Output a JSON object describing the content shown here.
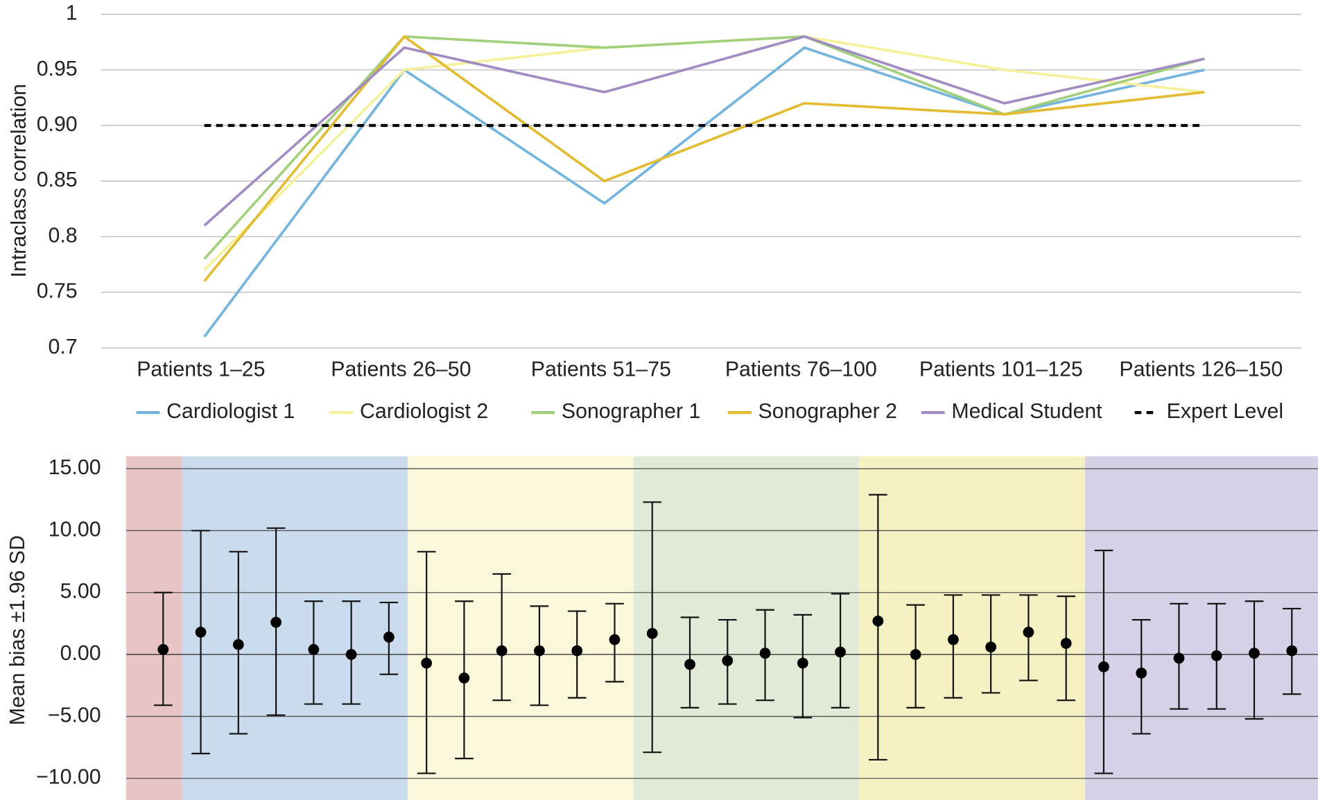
{
  "chart_data": [
    {
      "type": "line",
      "ylabel": "Intraclass correlation",
      "categories": [
        "Patients 1–25",
        "Patients 26–50",
        "Patients 51–75",
        "Patients 76–100",
        "Patients 101–125",
        "Patients 126–150"
      ],
      "ylim": [
        0.7,
        1
      ],
      "yticks": [
        0.7,
        0.75,
        0.8,
        0.85,
        {
          "value": 0.9,
          "label": "0.90"
        },
        0.95,
        1
      ],
      "grid": true,
      "series": [
        {
          "name": "Cardiologist 1",
          "color": "#72b4dd",
          "values": [
            0.71,
            0.95,
            0.83,
            0.97,
            0.91,
            0.95
          ]
        },
        {
          "name": "Cardiologist 2",
          "color": "#f6f09a",
          "values": [
            0.77,
            0.95,
            0.97,
            0.98,
            0.95,
            0.93
          ]
        },
        {
          "name": "Sonographer 1",
          "color": "#a2d07a",
          "values": [
            0.78,
            0.98,
            0.97,
            0.98,
            0.91,
            0.96
          ]
        },
        {
          "name": "Sonographer 2",
          "color": "#e2bb30",
          "values": [
            0.76,
            0.98,
            0.85,
            0.92,
            0.91,
            0.93
          ]
        },
        {
          "name": "Medical Student",
          "color": "#a08cc2",
          "values": [
            0.81,
            0.97,
            0.93,
            0.98,
            0.92,
            0.96
          ]
        },
        {
          "name": "Expert Level",
          "color": "#000000",
          "dashed": true,
          "values": [
            0.9,
            0.9,
            0.9,
            0.9,
            0.9,
            0.9
          ]
        }
      ]
    },
    {
      "type": "errorbar",
      "ylabel": "Mean  bias ±1.96 SD",
      "ylim": [
        -11.75,
        16
      ],
      "yticks": [
        {
          "value": -10,
          "label": "−10.00"
        },
        {
          "value": -5,
          "label": "−5.00"
        },
        {
          "value": 0,
          "label": "0.00"
        },
        {
          "value": 5,
          "label": "5.00"
        },
        {
          "value": 10,
          "label": "10.00"
        },
        {
          "value": 15,
          "label": "15.00"
        }
      ],
      "grid": true,
      "marker_color": "#000000",
      "series": [
        {
          "color": "#e8c4c4",
          "values": [
            0.4
          ],
          "upper": [
            5.0
          ],
          "lower": [
            -4.1
          ]
        },
        {
          "color": "#cbdbee",
          "values": [
            1.8,
            0.8,
            2.6,
            0.4,
            0.0,
            1.4
          ],
          "upper": [
            10.0,
            8.3,
            10.2,
            4.3,
            4.3,
            4.2
          ],
          "lower": [
            -8.0,
            -6.4,
            -4.9,
            -4.0,
            -4.0,
            -1.6
          ]
        },
        {
          "color": "#faf7da",
          "values": [
            -0.7,
            -1.9,
            0.3,
            0.3,
            0.3,
            1.2
          ],
          "upper": [
            8.3,
            4.3,
            6.5,
            3.9,
            3.5,
            4.1
          ],
          "lower": [
            -9.6,
            -8.4,
            -3.7,
            -4.1,
            -3.5,
            -2.2
          ]
        },
        {
          "color": "#e0ead7",
          "values": [
            1.7,
            -0.8,
            -0.5,
            0.1,
            -0.7,
            0.2
          ],
          "upper": [
            12.3,
            3.0,
            2.8,
            3.6,
            3.2,
            4.9
          ],
          "lower": [
            -7.9,
            -4.3,
            -4.0,
            -3.7,
            -5.1,
            -4.3
          ]
        },
        {
          "color": "#f6f1c3",
          "values": [
            2.7,
            0.0,
            1.2,
            0.6,
            1.8,
            0.9
          ],
          "upper": [
            12.9,
            4.0,
            4.8,
            4.8,
            4.8,
            4.7
          ],
          "lower": [
            -8.5,
            -4.3,
            -3.5,
            -3.1,
            -2.1,
            -3.7
          ]
        },
        {
          "color": "#d8d0e6",
          "values": [
            -1.0,
            -1.5,
            -0.3,
            -0.1,
            0.1,
            0.3
          ],
          "upper": [
            8.4,
            2.8,
            4.1,
            4.1,
            4.3,
            3.7
          ],
          "lower": [
            -9.6,
            -6.4,
            -4.4,
            -4.4,
            -5.2,
            -3.2
          ]
        }
      ]
    }
  ]
}
